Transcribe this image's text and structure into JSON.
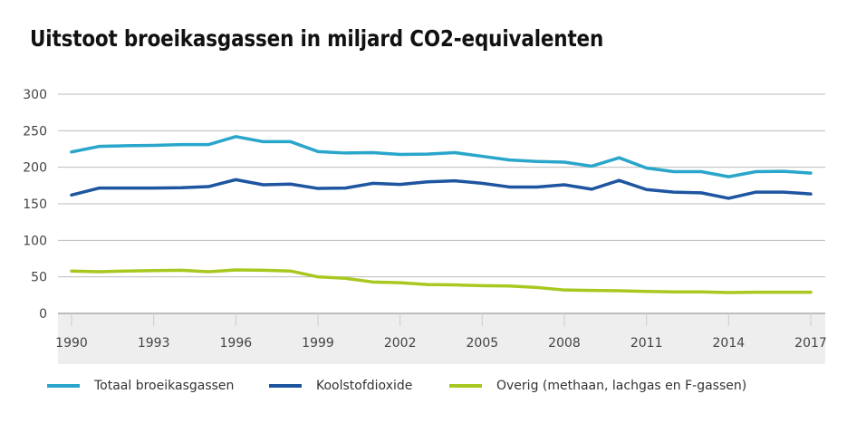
{
  "title": "Uitstoot broeikasgassen in miljard CO2-equivalenten",
  "chart_data": {
    "type": "line",
    "title": "Uitstoot broeikasgassen in miljard CO2-equivalenten",
    "xlabel": "",
    "ylabel": "",
    "x": [
      1990,
      1991,
      1992,
      1993,
      1994,
      1995,
      1996,
      1997,
      1998,
      1999,
      2000,
      2001,
      2002,
      2003,
      2004,
      2005,
      2006,
      2007,
      2008,
      2009,
      2010,
      2011,
      2012,
      2013,
      2014,
      2015,
      2016,
      2017
    ],
    "xticks": [
      1990,
      1993,
      1996,
      1999,
      2002,
      2005,
      2008,
      2011,
      2014,
      2017
    ],
    "xlim": [
      1990,
      2017
    ],
    "yticks": [
      0,
      50,
      100,
      150,
      200,
      250,
      300
    ],
    "ylim": [
      0,
      300
    ],
    "grid": "horizontal",
    "legend_position": "bottom",
    "series": [
      {
        "name": "Totaal broeikasgassen",
        "color": "#2AA6CB",
        "values": [
          221,
          228.5,
          229.5,
          230,
          231,
          231,
          242,
          235,
          235,
          221.5,
          219.5,
          220,
          217.5,
          218,
          220,
          215,
          210,
          208,
          207,
          201.5,
          213,
          199,
          194,
          194,
          187,
          194,
          194.5,
          192
        ]
      },
      {
        "name": "Koolstofdioxide",
        "color": "#1E55A0",
        "values": [
          162,
          171.5,
          171.5,
          171.5,
          172,
          173.5,
          183,
          176,
          177,
          171,
          171.5,
          178,
          176.5,
          180,
          181.5,
          178,
          173,
          173,
          176,
          170,
          182,
          169.5,
          166,
          165,
          157.5,
          166,
          166,
          163.5
        ]
      },
      {
        "name": "Overig (methaan, lachgas en F-gassen)",
        "color": "#A8C820",
        "values": [
          58,
          57,
          58,
          58.5,
          59,
          57,
          59.5,
          59,
          58,
          50,
          48,
          43,
          42,
          39.5,
          39,
          38,
          37.5,
          35.5,
          32,
          31.5,
          31,
          30,
          29.5,
          29.5,
          28.5,
          29,
          29,
          29
        ]
      }
    ]
  }
}
